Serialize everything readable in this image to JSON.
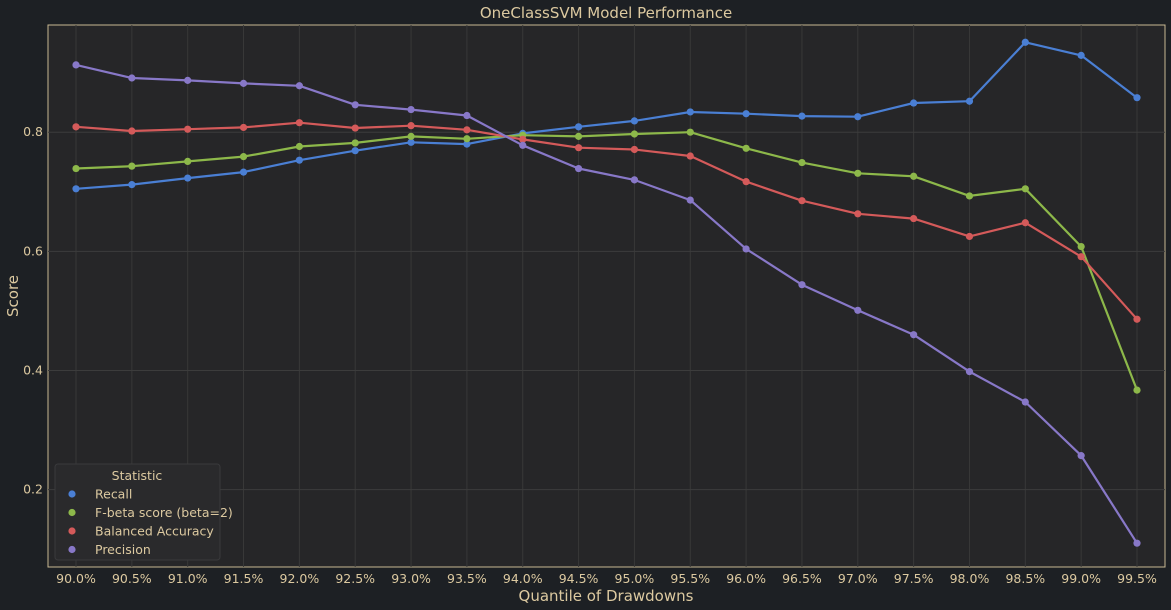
{
  "chart_data": {
    "type": "line",
    "title": "OneClassSVM Model Performance",
    "xlabel": "Quantile of Drawdowns",
    "ylabel": "Score",
    "categories": [
      "90.0%",
      "90.5%",
      "91.0%",
      "91.5%",
      "92.0%",
      "92.5%",
      "93.0%",
      "93.5%",
      "94.0%",
      "94.5%",
      "95.0%",
      "95.5%",
      "96.0%",
      "96.5%",
      "97.0%",
      "97.5%",
      "98.0%",
      "98.5%",
      "99.0%",
      "99.5%"
    ],
    "ylim": [
      0.07,
      0.98
    ],
    "yticks": [
      0.2,
      0.4,
      0.6,
      0.8
    ],
    "grid": true,
    "legend": {
      "title": "Statistic",
      "placement": "lower-left"
    },
    "series": [
      {
        "name": "Recall",
        "color": "#4a7fd4",
        "values": [
          0.705,
          0.712,
          0.723,
          0.733,
          0.753,
          0.769,
          0.783,
          0.78,
          0.798,
          0.809,
          0.819,
          0.834,
          0.831,
          0.827,
          0.826,
          0.849,
          0.852,
          0.951,
          0.929,
          0.858
        ]
      },
      {
        "name": "F-beta score (beta=2)",
        "color": "#8db84a",
        "values": [
          0.739,
          0.743,
          0.751,
          0.759,
          0.776,
          0.782,
          0.793,
          0.789,
          0.795,
          0.793,
          0.797,
          0.8,
          0.773,
          0.749,
          0.731,
          0.726,
          0.693,
          0.705,
          0.608,
          0.367
        ]
      },
      {
        "name": "Balanced Accuracy",
        "color": "#d45a5a",
        "values": [
          0.809,
          0.802,
          0.805,
          0.808,
          0.816,
          0.807,
          0.811,
          0.804,
          0.788,
          0.774,
          0.771,
          0.76,
          0.717,
          0.685,
          0.663,
          0.655,
          0.625,
          0.648,
          0.591,
          0.486
        ]
      },
      {
        "name": "Precision",
        "color": "#8878c8",
        "values": [
          0.913,
          0.891,
          0.887,
          0.882,
          0.878,
          0.846,
          0.838,
          0.828,
          0.778,
          0.739,
          0.72,
          0.686,
          0.604,
          0.544,
          0.501,
          0.46,
          0.398,
          0.347,
          0.257,
          0.11
        ]
      }
    ]
  }
}
